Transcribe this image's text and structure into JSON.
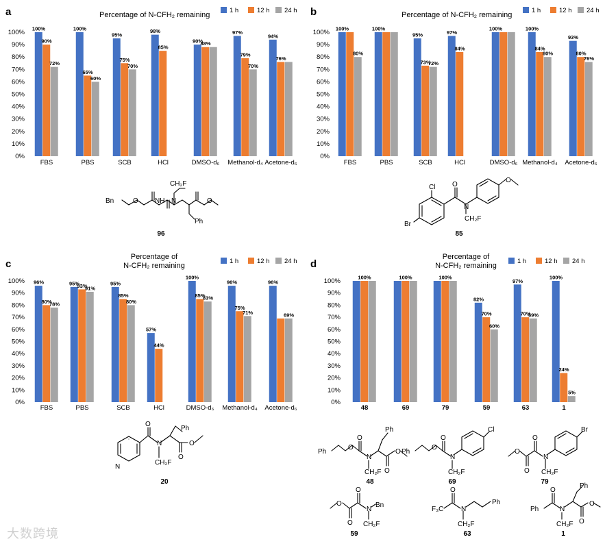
{
  "colors": {
    "1h": "#4472C4",
    "12h": "#ED7D31",
    "24h": "#A5A5A5"
  },
  "legend_labels": [
    "1 h",
    "12 h",
    "24 h"
  ],
  "watermark": "大数跨境",
  "chart_data": [
    {
      "panel": "a",
      "type": "bar",
      "title": "Percentage of N-CFH₂ remaining",
      "categories": [
        "FBS",
        "PBS",
        "SCB",
        "HCl",
        "DMSO-d₆",
        "Methanol-d₄",
        "Acetone-d₆"
      ],
      "yticks": [
        "0%",
        "10%",
        "20%",
        "30%",
        "40%",
        "50%",
        "60%",
        "70%",
        "80%",
        "90%",
        "100%"
      ],
      "ylim": [
        0,
        100
      ],
      "series": [
        {
          "name": "1 h",
          "values": [
            100,
            100,
            95,
            98,
            90,
            97,
            94
          ]
        },
        {
          "name": "12 h",
          "values": [
            90,
            65,
            75,
            85,
            88,
            79,
            76
          ]
        },
        {
          "name": "24 h",
          "values": [
            72,
            60,
            70,
            null,
            88,
            70,
            76
          ]
        }
      ],
      "value_labels": [
        [
          "100%",
          "100%",
          "95%",
          "98%",
          "90%",
          "97%",
          "94%"
        ],
        [
          "90%",
          "65%",
          "75%",
          "85%",
          "88%",
          "79%",
          "76%"
        ],
        [
          "72%",
          "60%",
          "70%",
          "",
          "",
          "70%",
          ""
        ]
      ],
      "compound": "96"
    },
    {
      "panel": "b",
      "type": "bar",
      "title": "Percentage of  N-CFH₂ remaining",
      "categories": [
        "FBS",
        "PBS",
        "SCB",
        "HCl",
        "DMSO-d₆",
        "Methanol-d₄",
        "Acetone-d₆"
      ],
      "yticks": [
        "0%",
        "10%",
        "20%",
        "30%",
        "40%",
        "50%",
        "60%",
        "70%",
        "80%",
        "90%",
        "100%"
      ],
      "ylim": [
        0,
        100
      ],
      "series": [
        {
          "name": "1 h",
          "values": [
            100,
            100,
            95,
            97,
            100,
            100,
            93
          ]
        },
        {
          "name": "12 h",
          "values": [
            100,
            100,
            73,
            84,
            100,
            84,
            80
          ]
        },
        {
          "name": "24 h",
          "values": [
            80,
            100,
            72,
            null,
            100,
            80,
            76
          ]
        }
      ],
      "value_labels": [
        [
          "100%",
          "100%",
          "95%",
          "97%",
          "100%",
          "100%",
          "93%"
        ],
        [
          "",
          "",
          "73%",
          "84%",
          "",
          "84%",
          "80%"
        ],
        [
          "80%",
          "",
          "72%",
          "",
          "",
          "80%",
          "76%"
        ]
      ],
      "compound": "85"
    },
    {
      "panel": "c",
      "type": "bar",
      "title_line1": "Percentage of",
      "title_line2": "N-CFH₂ remaining",
      "categories": [
        "FBS",
        "PBS",
        "SCB",
        "HCl",
        "DMSO-d₆",
        "Methanol-d₄",
        "Acetone-d₆"
      ],
      "yticks": [
        "0%",
        "10%",
        "20%",
        "30%",
        "40%",
        "50%",
        "60%",
        "70%",
        "80%",
        "90%",
        "100%"
      ],
      "ylim": [
        0,
        100
      ],
      "series": [
        {
          "name": "1 h",
          "values": [
            96,
            95,
            95,
            57,
            100,
            96,
            96
          ]
        },
        {
          "name": "12 h",
          "values": [
            80,
            93,
            85,
            44,
            85,
            75,
            69
          ]
        },
        {
          "name": "24 h",
          "values": [
            78,
            91,
            80,
            null,
            83,
            71,
            69
          ]
        }
      ],
      "value_labels": [
        [
          "96%",
          "95%",
          "95%",
          "57%",
          "100%",
          "96%",
          "96%"
        ],
        [
          "80%",
          "93%",
          "85%",
          "44%",
          "85%",
          "75%",
          ""
        ],
        [
          "78%",
          "91%",
          "80%",
          "",
          "83%",
          "71%",
          "69%"
        ]
      ],
      "compound": "20"
    },
    {
      "panel": "d",
      "type": "bar",
      "title_line1": "Percentage of",
      "title_line2": "N-CFH₂ remaining",
      "categories": [
        "48",
        "69",
        "79",
        "59",
        "63",
        "1"
      ],
      "yticks": [
        "0%",
        "10%",
        "20%",
        "30%",
        "40%",
        "50%",
        "60%",
        "70%",
        "80%",
        "90%",
        "100%"
      ],
      "ylim": [
        0,
        100
      ],
      "series": [
        {
          "name": "1 h",
          "values": [
            100,
            100,
            100,
            82,
            97,
            100
          ]
        },
        {
          "name": "12 h",
          "values": [
            100,
            100,
            100,
            70,
            70,
            24
          ]
        },
        {
          "name": "24 h",
          "values": [
            100,
            100,
            100,
            60,
            69,
            5
          ]
        }
      ],
      "value_labels": [
        [
          "",
          "",
          "",
          "82%",
          "97%",
          "100%"
        ],
        [
          "100%",
          "100%",
          "100%",
          "70%",
          "70%",
          "24%"
        ],
        [
          "",
          "",
          "",
          "60%",
          "69%",
          "5%"
        ]
      ],
      "compounds": [
        "48",
        "69",
        "79",
        "59",
        "63",
        "1"
      ]
    }
  ],
  "structure_text": {
    "s96": {
      "bn": "Bn",
      "o": "O",
      "nh": "NH",
      "n": "N",
      "ch2f": "CH₂F",
      "ph": "Ph"
    },
    "s85": {
      "cl": "Cl",
      "br": "Br",
      "n": "N",
      "o": "O",
      "ch2f": "CH₂F"
    },
    "s20": {
      "n": "N",
      "ch2f": "CH₂F",
      "ph": "Ph",
      "o": "O"
    },
    "s48": {
      "ph": "Ph",
      "o": "O",
      "n": "N",
      "ch2f": "CH₂F"
    },
    "s69": {
      "ph": "Ph",
      "o": "O",
      "n": "N",
      "ch2f": "CH₂F",
      "cl": "Cl"
    },
    "s79": {
      "o": "O",
      "n": "N",
      "ch2f": "CH₂F",
      "br": "Br"
    },
    "s59": {
      "o": "O",
      "n": "N",
      "bn": "Bn",
      "ch2f": "CH₂F"
    },
    "s63": {
      "f3c": "F₃C",
      "o": "O",
      "n": "N",
      "ch2f": "CH₂F",
      "ph": "Ph"
    },
    "s1": {
      "ph": "Ph",
      "o": "O",
      "n": "N",
      "ch2f": "CH₂F"
    }
  }
}
